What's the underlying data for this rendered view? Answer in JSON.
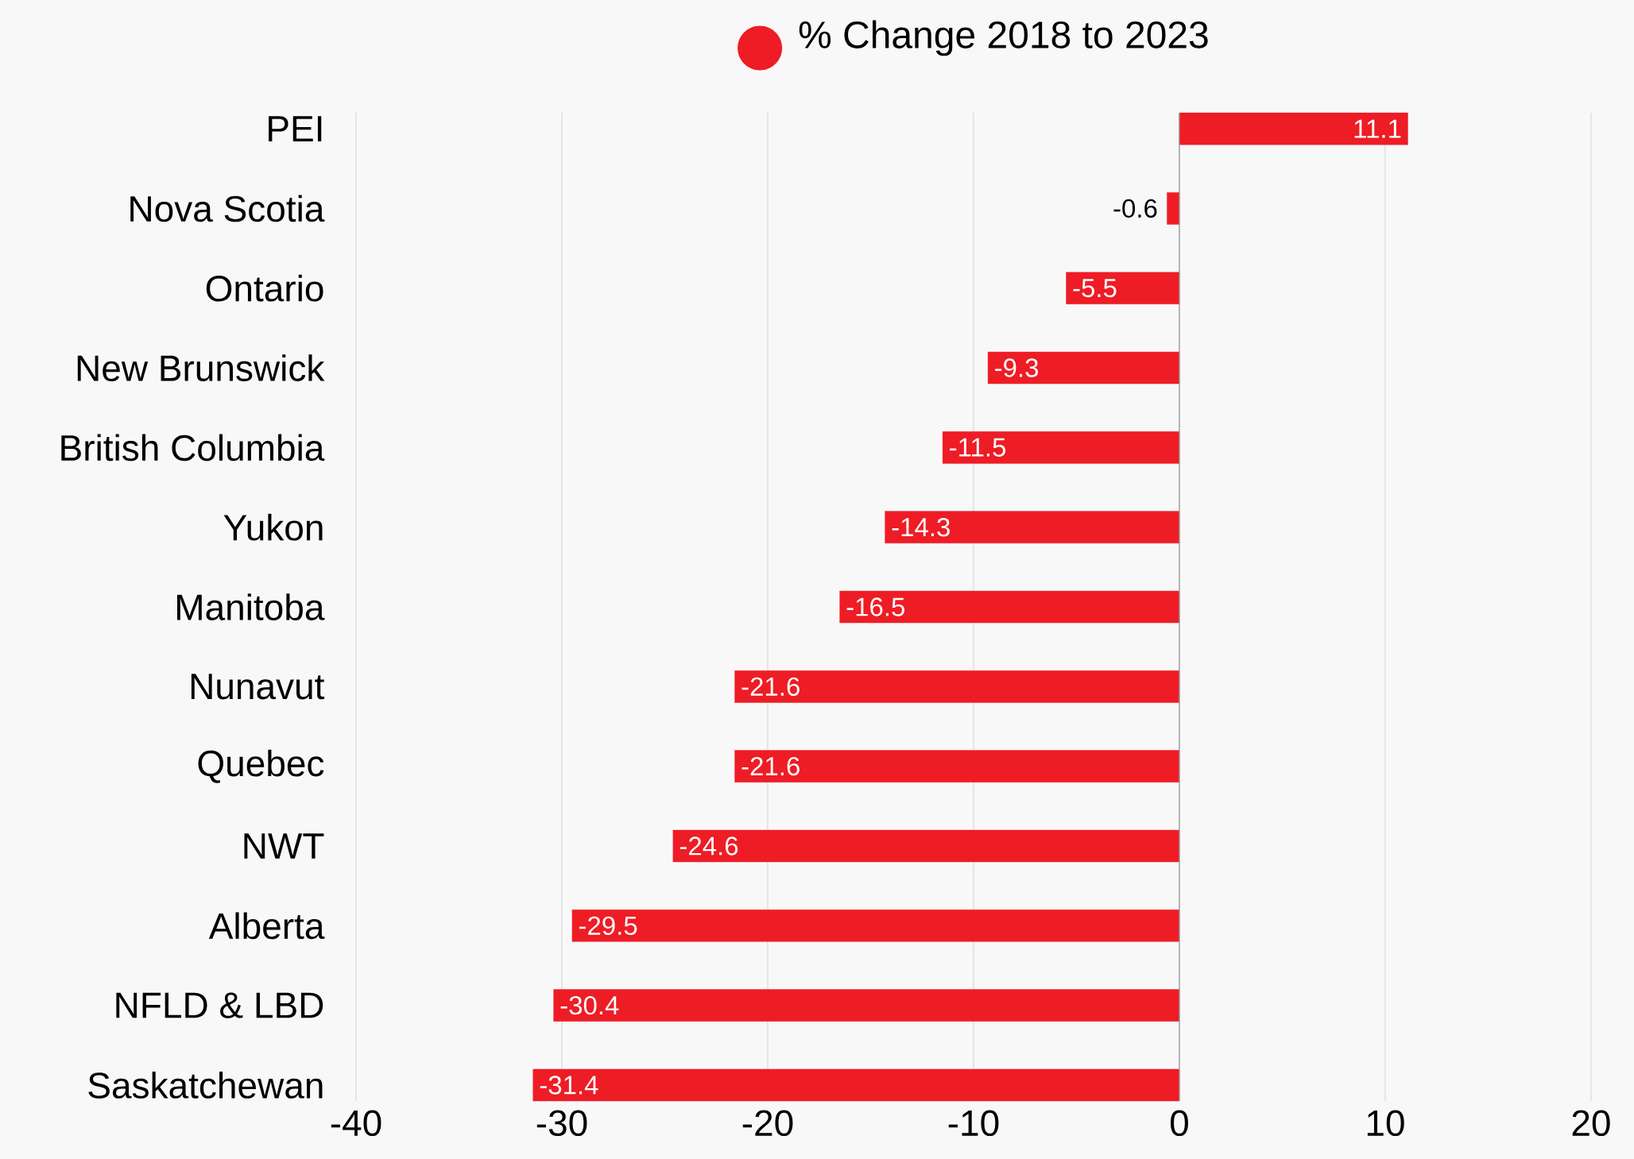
{
  "chart_data": {
    "type": "bar",
    "orientation": "horizontal",
    "legend": "top",
    "marker": "circle",
    "categories": [
      "PEI",
      "Nova Scotia",
      "Ontario",
      "New Brunswick",
      "British Columbia",
      "Yukon",
      "Manitoba",
      "Nunavut",
      "Quebec",
      "NWT",
      "Alberta",
      "NFLD & LBD",
      "Saskatchewan"
    ],
    "series": [
      {
        "name": "% Change 2018 to 2023",
        "color": "#ee1c25",
        "values": [
          11.1,
          -0.6,
          -5.5,
          -9.3,
          -11.5,
          -14.3,
          -16.5,
          -21.6,
          -21.6,
          -24.6,
          -29.5,
          -30.4,
          -31.4
        ]
      }
    ],
    "data_labels": true,
    "grid": "x",
    "xlim": [
      -40,
      20
    ],
    "xticks": [
      -40,
      -30,
      -20,
      -10,
      0,
      10,
      20
    ]
  }
}
